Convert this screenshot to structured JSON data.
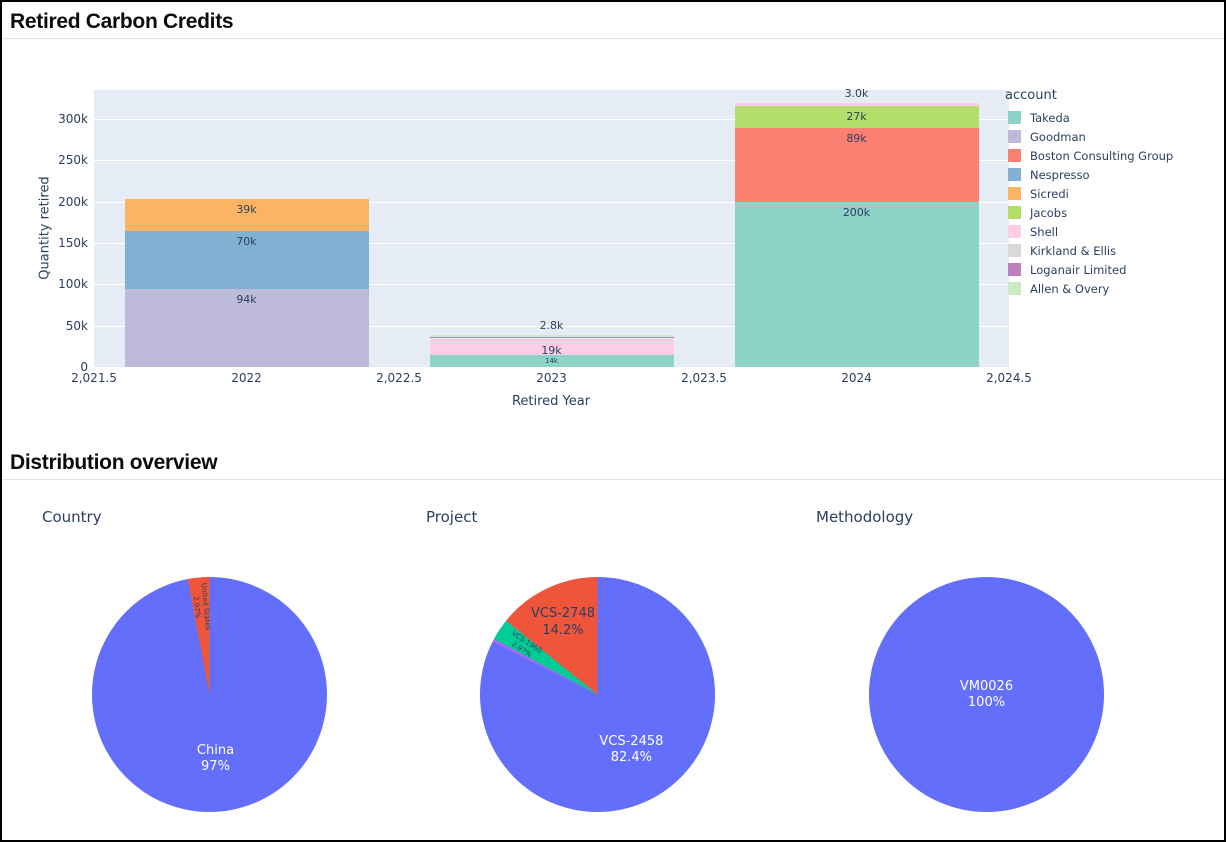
{
  "sections": [
    {
      "title": "Retired Carbon Credits"
    },
    {
      "title": "Distribution overview"
    }
  ],
  "theme": {
    "plot_background": "#E5ECF6",
    "gridline_color": "#FFFFFF",
    "chart_text_color": "#2A3F5F",
    "pie_blue": "#636EFA",
    "pie_red": "#EF553B",
    "pie_green": "#00CC96",
    "pie_purple": "#AB63FA"
  },
  "chart_data": [
    {
      "type": "bar",
      "stacked": true,
      "xlabel": "Retired Year",
      "ylabel": "Quantity retired",
      "legend_title": "account",
      "legend_position": "right",
      "grid": true,
      "x": [
        2022,
        2023,
        2024
      ],
      "xlim": [
        2021.5,
        2024.5
      ],
      "ylim": [
        0,
        335000
      ],
      "bar_width": 0.8,
      "x_tick_labels": [
        "2,021.5",
        "2022",
        "2,022.5",
        "2023",
        "2,023.5",
        "2024",
        "2,024.5"
      ],
      "x_tick_values": [
        2021.5,
        2022,
        2022.5,
        2023,
        2023.5,
        2024,
        2024.5
      ],
      "y_tick_labels": [
        "0",
        "50k",
        "100k",
        "150k",
        "200k",
        "250k",
        "300k"
      ],
      "y_tick_values": [
        0,
        50000,
        100000,
        150000,
        200000,
        250000,
        300000
      ],
      "series": [
        {
          "name": "Takeda",
          "color": "#8DD3C7",
          "values": [
            0,
            14000,
            200000
          ]
        },
        {
          "name": "Goodman",
          "color": "#BEBADA",
          "values": [
            94000,
            0,
            0
          ]
        },
        {
          "name": "Boston Consulting Group",
          "color": "#FB8072",
          "values": [
            0,
            0,
            89000
          ]
        },
        {
          "name": "Nespresso",
          "color": "#80B1D3",
          "values": [
            70000,
            0,
            0
          ]
        },
        {
          "name": "Sicredi",
          "color": "#FDB462",
          "values": [
            39000,
            0,
            0
          ]
        },
        {
          "name": "Jacobs",
          "color": "#B3DE69",
          "values": [
            0,
            0,
            27000
          ]
        },
        {
          "name": "Shell",
          "color": "#FCCDE5",
          "values": [
            0,
            19000,
            3000
          ]
        },
        {
          "name": "Kirkland & Ellis",
          "color": "#D9D9D9",
          "values": [
            0,
            1500,
            0
          ]
        },
        {
          "name": "Loganair Limited",
          "color": "#BC80BD",
          "values": [
            0,
            1400,
            0
          ]
        },
        {
          "name": "Allen & Overy",
          "color": "#CCEBC5",
          "values": [
            0,
            2800,
            0
          ]
        }
      ],
      "visible_value_labels": [
        "94k",
        "70k",
        "39k",
        "14k",
        "19k",
        "2.8k",
        "200k",
        "89k",
        "27k",
        "3.0k"
      ]
    },
    {
      "type": "pie",
      "title": "Country",
      "slices": [
        {
          "label": "China",
          "pct": 97.03,
          "pct_label": "97%",
          "color": "#636EFA"
        },
        {
          "label": "United States",
          "pct": 2.97,
          "pct_label": "2.97%",
          "color": "#EF553B"
        }
      ]
    },
    {
      "type": "pie",
      "title": "Project",
      "slices": [
        {
          "label": "VCS-2458",
          "pct": 82.4,
          "pct_label": "82.4%",
          "color": "#636EFA"
        },
        {
          "label": "",
          "pct": 0.43,
          "pct_label": "",
          "color": "#AB63FA"
        },
        {
          "label": "VCS-1960",
          "pct": 2.97,
          "pct_label": "2.97%",
          "color": "#00CC96"
        },
        {
          "label": "VCS-2748",
          "pct": 14.2,
          "pct_label": "14.2%",
          "color": "#EF553B"
        }
      ]
    },
    {
      "type": "pie",
      "title": "Methodology",
      "slices": [
        {
          "label": "VM0026",
          "pct": 100,
          "pct_label": "100%",
          "color": "#636EFA"
        }
      ]
    }
  ]
}
